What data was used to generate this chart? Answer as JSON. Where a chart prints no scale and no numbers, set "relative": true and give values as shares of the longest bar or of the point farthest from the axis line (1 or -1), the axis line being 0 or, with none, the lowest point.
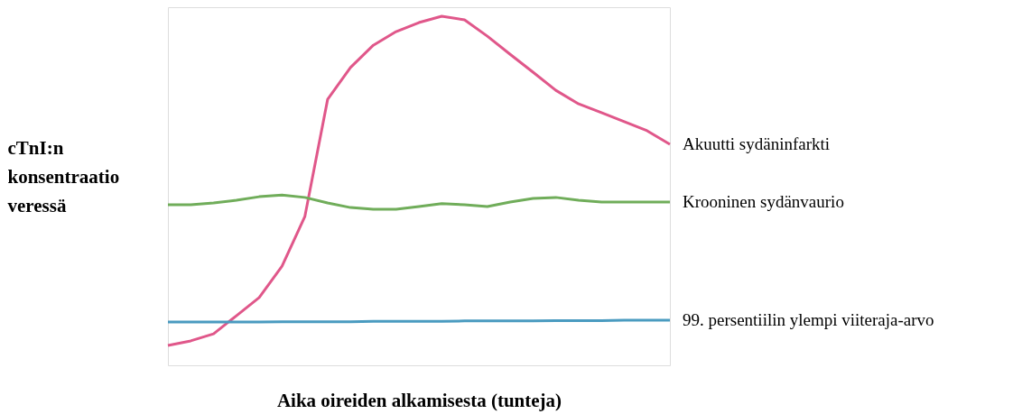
{
  "chart_data": {
    "type": "line",
    "relative": true,
    "xlabel": "Aika oireiden alkamisesta (tunteja)",
    "ylabel": "cTnI:n konsentraatio veressä",
    "legend": false,
    "grid": false,
    "marker": "none",
    "line_style": "solid",
    "categories": [
      null,
      null,
      null,
      null,
      null,
      null,
      null,
      null,
      null,
      null,
      null,
      null,
      null,
      null,
      null,
      null,
      null,
      null,
      null,
      null,
      null,
      null,
      null
    ],
    "series": [
      {
        "name": "Akuutti sydäninfarkti",
        "color": "#e0578a",
        "values": [
          0.057,
          0.07,
          0.09,
          0.142,
          0.194,
          0.284,
          0.426,
          0.762,
          0.853,
          0.917,
          0.956,
          0.982,
          1,
          0.99,
          0.943,
          0.891,
          0.84,
          0.788,
          0.749,
          0.724,
          0.698,
          0.672,
          0.633
        ]
      },
      {
        "name": "Krooninen sydänvaurio",
        "color": "#70ad5a",
        "values": [
          0.46,
          0.46,
          0.465,
          0.473,
          0.483,
          0.488,
          0.481,
          0.465,
          0.452,
          0.447,
          0.447,
          0.455,
          0.463,
          0.46,
          0.455,
          0.468,
          0.478,
          0.481,
          0.473,
          0.468,
          0.468,
          0.468,
          0.468
        ]
      },
      {
        "name": "99. persentiilin ylempi viiteraja-arvo",
        "color": "#4a9bc0",
        "values": [
          0.124,
          0.124,
          0.124,
          0.124,
          0.124,
          0.125,
          0.125,
          0.125,
          0.125,
          0.126,
          0.126,
          0.126,
          0.126,
          0.127,
          0.127,
          0.127,
          0.127,
          0.128,
          0.128,
          0.128,
          0.129,
          0.129,
          0.129
        ]
      }
    ]
  }
}
